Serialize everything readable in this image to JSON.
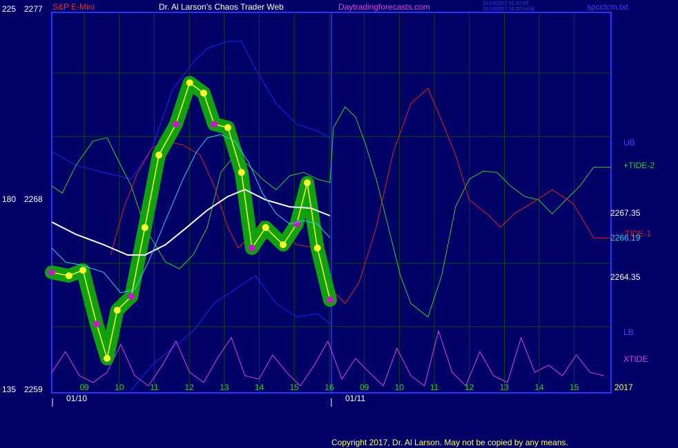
{
  "chart_data": {
    "type": "line",
    "instrument": "S&P E-Mini",
    "title": "Dr. Al Larson's Chaos Trader Web",
    "website": "Daytradingforecasts.com",
    "timestamps": [
      "01/10/2017 21:20 UT",
      "01/10/2017 16:20 Local"
    ],
    "filename": "spcctcm.txt",
    "copyright": "Copyright 2017, Dr. Al Larson. May not be copied by any means.",
    "year": "2017",
    "dates": [
      "01/10",
      "01/11"
    ],
    "price_labels": [
      2267.35,
      2266.19,
      2264.35
    ],
    "band_labels": [
      "UB",
      "LB"
    ],
    "xlim": [
      8.07,
      24.05
    ],
    "xticks": [
      {
        "value": 9,
        "label": "09"
      },
      10,
      11,
      12,
      13,
      14,
      15,
      16,
      {
        "value": 17,
        "label": "09"
      },
      {
        "value": 18,
        "label": "10"
      },
      {
        "value": 19,
        "label": "11"
      },
      {
        "value": 20,
        "label": "12"
      },
      {
        "value": 21,
        "label": "13"
      },
      {
        "value": 22,
        "label": "14"
      },
      {
        "value": 23,
        "label": "15"
      }
    ],
    "ylim": [
      2259,
      2277
    ],
    "yticks": [
      2259,
      2268,
      2277
    ],
    "y2lim": [
      135,
      225
    ],
    "y2ticks": [
      135,
      180,
      225
    ],
    "y_gridlines": [
      2262,
      2265,
      2271,
      2274
    ],
    "grid": true,
    "series": [
      {
        "name": "UB",
        "color": "#2020ff",
        "x": [
          8.07,
          8.76,
          9.55,
          10.34,
          10.93,
          11.52,
          12.11,
          12.51,
          13.1,
          13.49,
          13.89,
          14.48,
          15.07,
          15.66,
          16.02
        ],
        "values": [
          2270.28,
          2269.63,
          2269.3,
          2268.98,
          2270.44,
          2273.21,
          2274.52,
          2275.17,
          2275.5,
          2275.5,
          2274.19,
          2272.56,
          2271.58,
          2271.26,
          2270.93
        ]
      },
      {
        "name": "LB",
        "color": "#2020ff",
        "x": [
          10.34,
          10.93,
          11.52,
          12.11,
          12.71,
          13.3,
          13.89,
          14.48,
          15.07,
          15.66,
          16.02
        ],
        "values": [
          2259.0,
          2260.17,
          2260.99,
          2261.8,
          2263.11,
          2263.76,
          2264.41,
          2263.11,
          2262.46,
          2262.62,
          2262.13
        ]
      },
      {
        "name": "+TIDE-2",
        "color": "#30d030",
        "axis": "y2",
        "x": [
          8.07,
          8.37,
          8.76,
          9.25,
          9.65,
          9.94,
          10.34,
          10.73,
          11.32,
          11.72,
          12.11,
          12.51,
          12.9,
          13.3,
          13.69,
          14.09,
          14.48,
          14.87,
          15.27,
          15.66,
          16.02,
          16.12,
          16.45,
          16.75,
          17.04,
          17.34,
          17.64,
          18.03,
          18.33,
          18.82,
          19.21,
          19.61,
          20.0,
          20.4,
          20.79,
          21.18,
          21.58,
          21.98,
          22.37,
          22.76,
          23.16,
          23.55,
          24.05
        ],
        "values": [
          183.3,
          181.6,
          188.2,
          193.9,
          194.7,
          189.8,
          183.3,
          173.5,
          165.3,
          163.7,
          167.0,
          173.5,
          186.5,
          190.6,
          188.2,
          184.9,
          182.4,
          185.7,
          186.5,
          184.9,
          184.1,
          197.1,
          202.0,
          199.6,
          193.0,
          184.9,
          175.1,
          162.1,
          155.5,
          152.3,
          162.1,
          178.4,
          184.9,
          186.8,
          186.5,
          183.3,
          180.8,
          180.0,
          176.7,
          180.0,
          183.3,
          187.7,
          187.7
        ]
      },
      {
        "name": "TIDE-1",
        "color": "#e02020",
        "axis": "y2",
        "x": [
          9.75,
          10.14,
          10.53,
          10.93,
          11.32,
          11.82,
          12.31,
          12.71,
          13.1,
          13.4,
          13.69,
          14.09,
          14.48,
          15.07,
          15.66,
          16.06,
          16.45,
          16.85,
          17.34,
          17.83,
          18.33,
          18.82,
          19.21,
          19.61,
          20.0,
          20.5,
          20.89,
          21.28,
          21.78,
          22.37,
          22.96,
          23.55,
          24.05
        ],
        "values": [
          167.0,
          178.4,
          186.5,
          192.2,
          193.9,
          193.0,
          190.6,
          183.3,
          173.5,
          168.6,
          171.0,
          175.1,
          172.7,
          169.4,
          168.6,
          158.8,
          155.5,
          160.4,
          173.5,
          191.4,
          202.8,
          206.4,
          198.7,
          190.6,
          180.0,
          176.7,
          173.5,
          176.7,
          179.2,
          182.4,
          179.2,
          171.0,
          171.0
        ]
      },
      {
        "name": "XTIDE",
        "color": "#e040e0",
        "axis": "y2",
        "x": [
          8.07,
          8.46,
          8.86,
          9.25,
          9.65,
          10.04,
          10.44,
          10.83,
          11.23,
          11.62,
          12.01,
          12.41,
          12.8,
          13.2,
          13.59,
          13.99,
          14.38,
          14.78,
          15.17,
          15.57,
          15.96,
          16.36,
          16.75,
          17.14,
          17.54,
          17.93,
          18.33,
          18.72,
          19.12,
          19.51,
          19.9,
          20.3,
          20.69,
          21.09,
          21.48,
          21.87,
          22.27,
          22.66,
          23.06,
          23.45,
          23.85
        ],
        "values": [
          139.2,
          144.1,
          138.4,
          136.8,
          139.2,
          145.8,
          138.4,
          136.0,
          140.9,
          146.6,
          139.2,
          136.8,
          142.5,
          147.4,
          138.4,
          137.6,
          143.3,
          139.2,
          136.0,
          140.9,
          146.6,
          137.6,
          142.5,
          139.2,
          136.0,
          144.9,
          138.4,
          136.0,
          149.0,
          139.2,
          136.0,
          144.1,
          138.4,
          136.8,
          147.4,
          139.2,
          140.9,
          138.4,
          143.3,
          139.2,
          138.4
        ]
      },
      {
        "name": "Price",
        "color": "#ffff30",
        "halo": "#10a010",
        "dot": "#c020c0",
        "x": [
          8.07,
          8.56,
          8.96,
          9.35,
          9.65,
          9.94,
          10.34,
          10.73,
          11.13,
          11.62,
          12.01,
          12.41,
          12.71,
          13.1,
          13.49,
          13.79,
          14.18,
          14.68,
          15.07,
          15.37,
          15.66,
          16.02
        ],
        "values": [
          2264.57,
          2264.41,
          2264.67,
          2262.13,
          2260.5,
          2262.78,
          2263.43,
          2266.69,
          2270.12,
          2271.58,
          2273.54,
          2273.05,
          2271.58,
          2271.42,
          2269.3,
          2265.72,
          2266.69,
          2265.88,
          2266.86,
          2268.81,
          2265.72,
          2263.27
        ]
      },
      {
        "name": "White MA",
        "color": "#ffffff",
        "x": [
          8.07,
          8.76,
          9.55,
          10.24,
          10.73,
          11.32,
          11.92,
          12.51,
          13.1,
          13.59,
          14.18,
          14.87,
          15.47,
          16.02
        ],
        "values": [
          2266.95,
          2266.37,
          2265.88,
          2265.39,
          2265.39,
          2265.88,
          2266.69,
          2267.51,
          2268.16,
          2268.49,
          2268.0,
          2267.67,
          2267.61,
          2267.25
        ]
      },
      {
        "name": "Cyan MA",
        "color": "#30d0f0",
        "x": [
          8.07,
          8.46,
          8.96,
          9.55,
          10.04,
          10.44,
          10.83,
          11.32,
          11.82,
          12.21,
          12.51,
          12.9,
          13.3,
          13.69,
          14.09,
          14.48,
          14.87,
          15.27,
          15.66,
          16.02
        ],
        "values": [
          2265.72,
          2265.06,
          2264.9,
          2264.57,
          2263.6,
          2263.76,
          2265.06,
          2267.02,
          2268.98,
          2270.28,
          2270.93,
          2271.09,
          2270.77,
          2269.79,
          2268.32,
          2267.35,
          2266.86,
          2267.02,
          2266.86,
          2266.2
        ]
      }
    ]
  }
}
